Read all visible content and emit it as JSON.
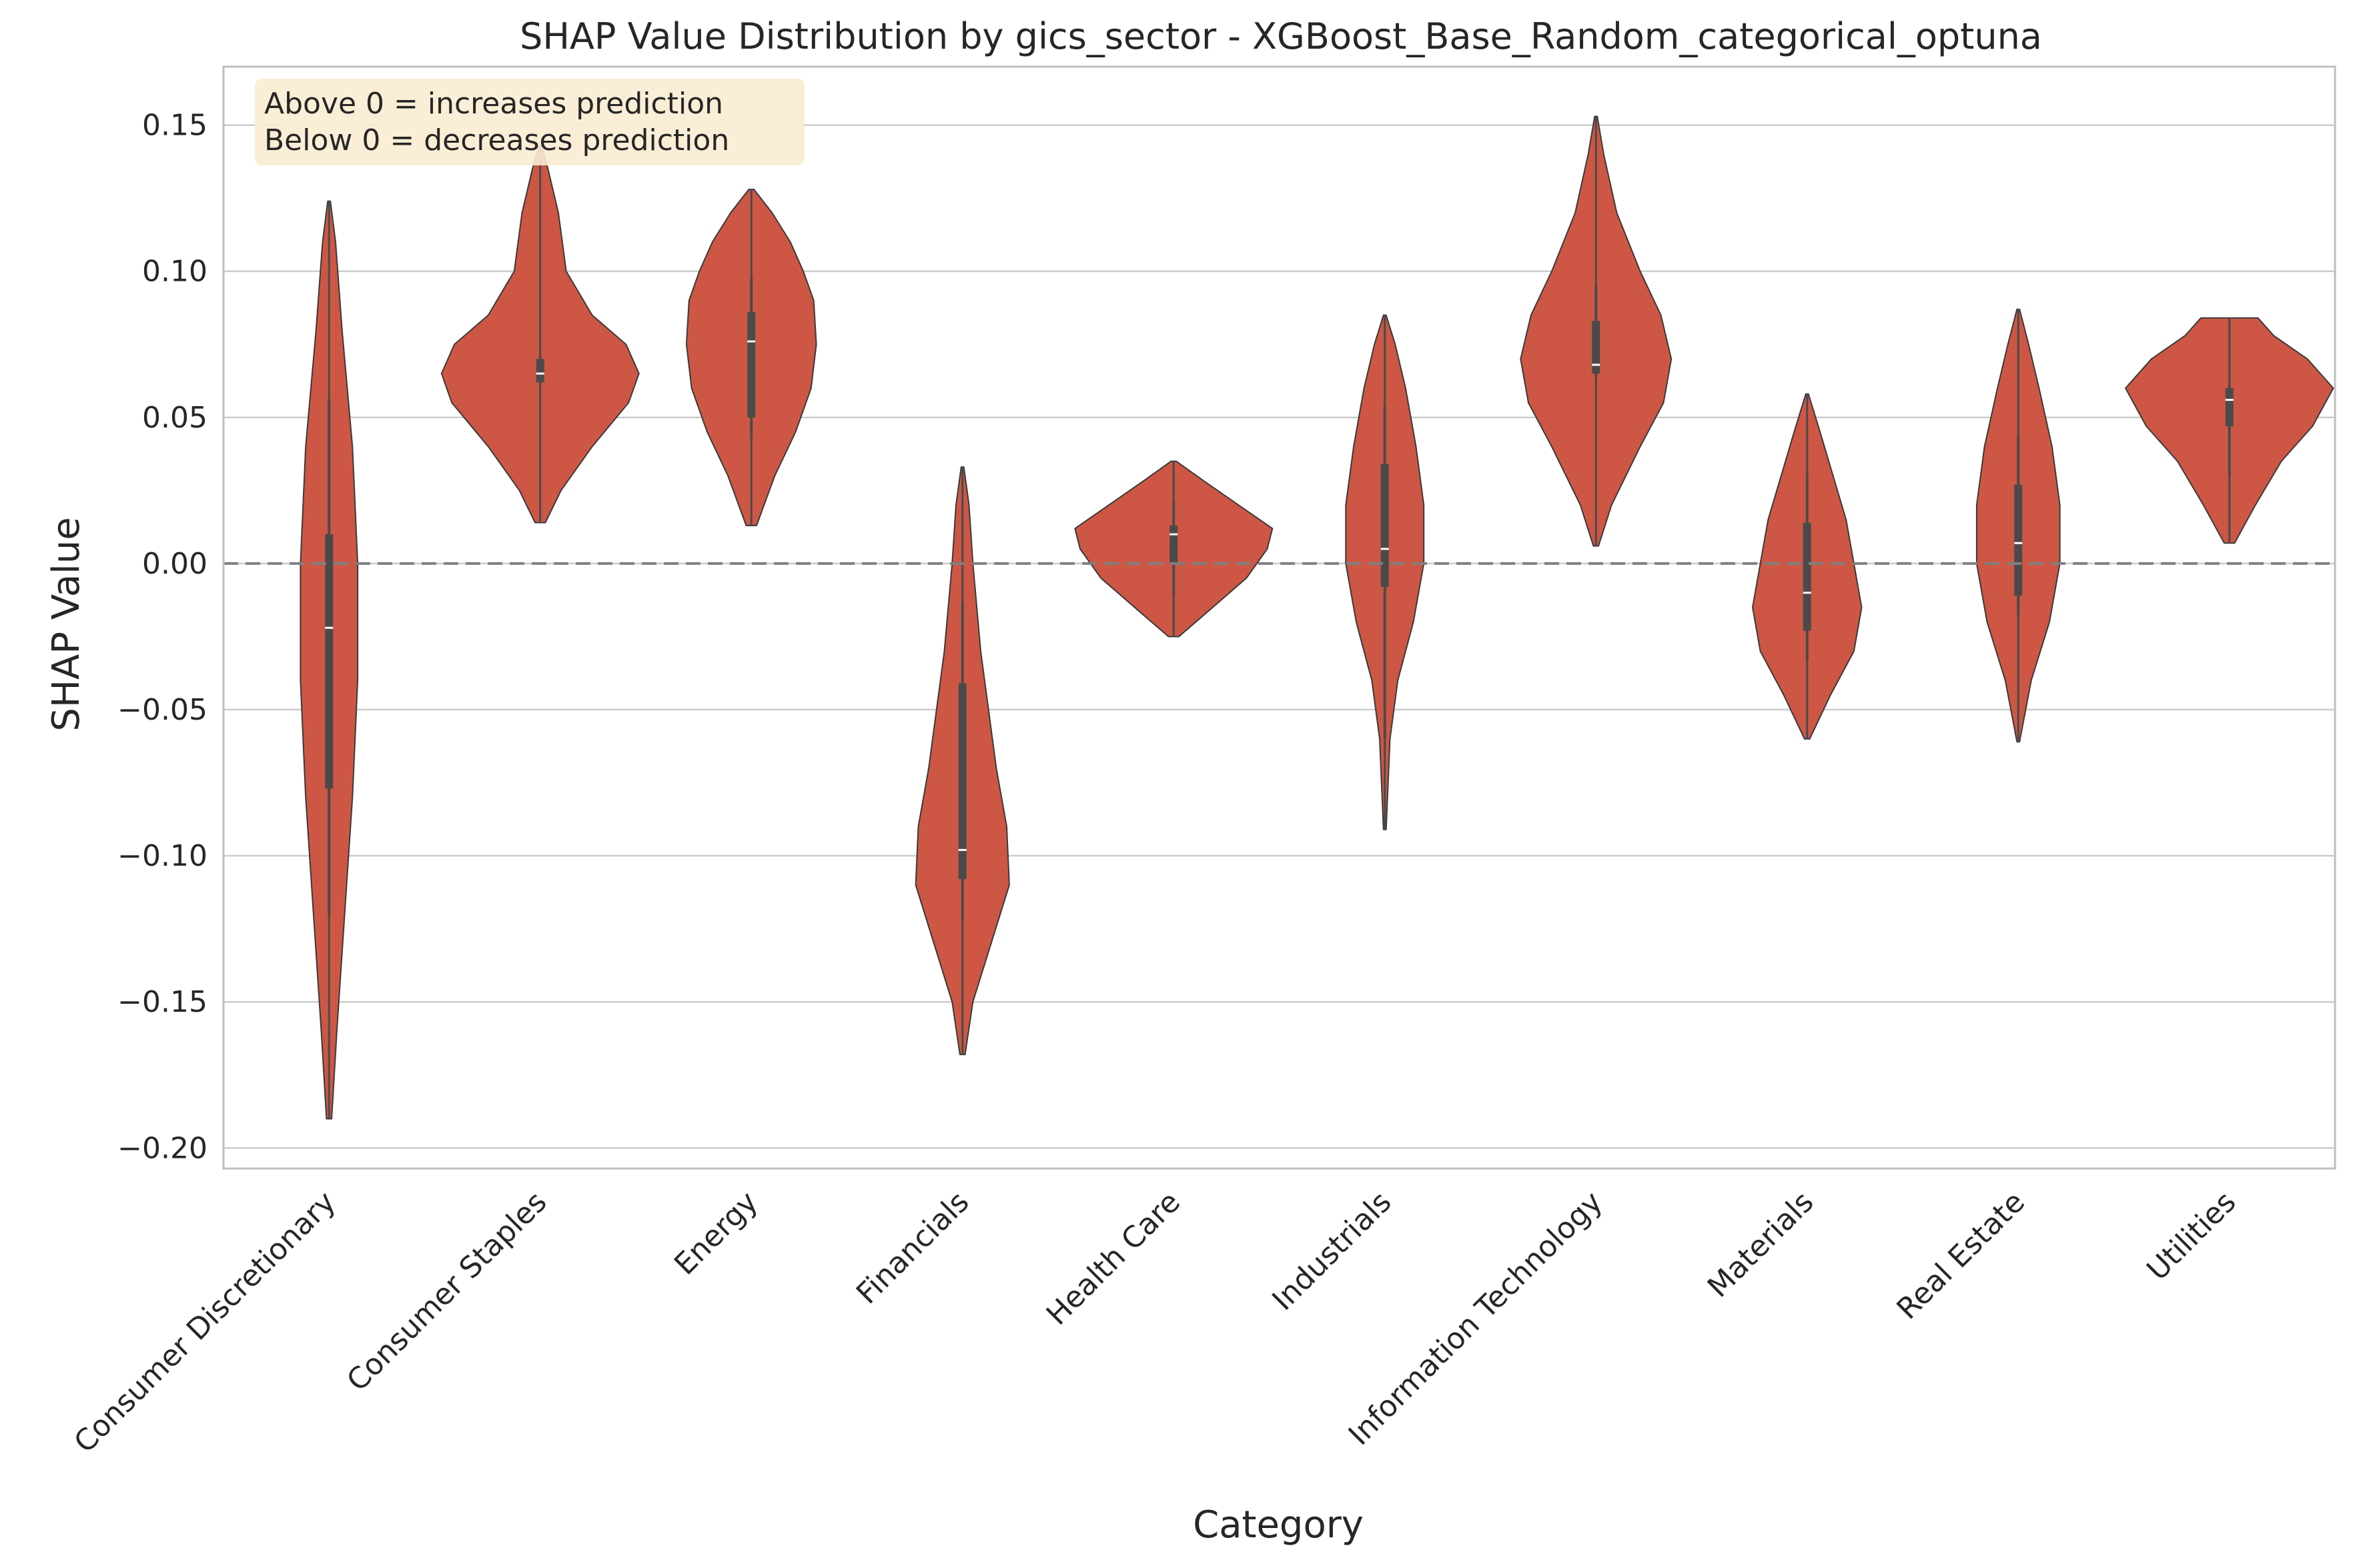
{
  "chart_data": {
    "type": "violin",
    "title": "SHAP Value Distribution by gics_sector - XGBoost_Base_Random_categorical_optuna",
    "xlabel": "Category",
    "ylabel": "SHAP Value",
    "ylim": [
      -0.207,
      0.17
    ],
    "yticks": [
      0.15,
      0.1,
      0.05,
      0.0,
      -0.05,
      -0.1,
      -0.15,
      -0.2
    ],
    "ytick_labels": [
      "0.15",
      "0.10",
      "0.05",
      "0.00",
      "−0.05",
      "−0.10",
      "−0.15",
      "−0.20"
    ],
    "grid": true,
    "reference_line": 0,
    "annotation": [
      "Above 0 = increases prediction",
      "Below 0 = decreases prediction"
    ],
    "colors": {
      "violin": "#cd5744",
      "violin_edge": "#3a3a3a",
      "box": "#4a4a4a",
      "grid": "#cccccc",
      "spine": "#bfbfbf",
      "refline": "#808080",
      "annot_bg": "#fbecd2"
    },
    "categories": [
      "Consumer Discretionary",
      "Consumer Staples",
      "Energy",
      "Financials",
      "Health Care",
      "Industrials",
      "Information Technology",
      "Materials",
      "Real Estate",
      "Utilities"
    ],
    "series": [
      {
        "min": -0.19,
        "max": 0.124,
        "whisker": [
          -0.12,
          0.056
        ],
        "q1": -0.077,
        "median": -0.022,
        "q3": 0.01,
        "profile": [
          [
            -0.19,
            0.002
          ],
          [
            -0.16,
            0.006
          ],
          [
            -0.12,
            0.012
          ],
          [
            -0.08,
            0.018
          ],
          [
            -0.04,
            0.022
          ],
          [
            0.0,
            0.022
          ],
          [
            0.04,
            0.018
          ],
          [
            0.08,
            0.01
          ],
          [
            0.11,
            0.005
          ],
          [
            0.124,
            0.001
          ]
        ]
      },
      {
        "min": 0.014,
        "max": 0.143,
        "whisker": [
          0.062,
          0.071
        ],
        "q1": 0.062,
        "median": 0.065,
        "q3": 0.07,
        "profile": [
          [
            0.014,
            0.004
          ],
          [
            0.025,
            0.016
          ],
          [
            0.04,
            0.04
          ],
          [
            0.055,
            0.068
          ],
          [
            0.065,
            0.076
          ],
          [
            0.075,
            0.066
          ],
          [
            0.085,
            0.04
          ],
          [
            0.1,
            0.02
          ],
          [
            0.12,
            0.014
          ],
          [
            0.135,
            0.006
          ],
          [
            0.143,
            0.001
          ]
        ]
      },
      {
        "min": 0.013,
        "max": 0.128,
        "whisker": [
          0.043,
          0.098
        ],
        "q1": 0.05,
        "median": 0.076,
        "q3": 0.086,
        "profile": [
          [
            0.013,
            0.004
          ],
          [
            0.03,
            0.018
          ],
          [
            0.045,
            0.034
          ],
          [
            0.06,
            0.046
          ],
          [
            0.075,
            0.05
          ],
          [
            0.09,
            0.048
          ],
          [
            0.1,
            0.04
          ],
          [
            0.11,
            0.03
          ],
          [
            0.12,
            0.016
          ],
          [
            0.128,
            0.002
          ]
        ]
      },
      {
        "min": -0.168,
        "max": 0.033,
        "whisker": [
          -0.122,
          -0.013
        ],
        "q1": -0.108,
        "median": -0.098,
        "q3": -0.041,
        "profile": [
          [
            -0.168,
            0.002
          ],
          [
            -0.15,
            0.008
          ],
          [
            -0.13,
            0.022
          ],
          [
            -0.11,
            0.036
          ],
          [
            -0.09,
            0.034
          ],
          [
            -0.07,
            0.026
          ],
          [
            -0.05,
            0.02
          ],
          [
            -0.03,
            0.014
          ],
          [
            0.0,
            0.008
          ],
          [
            0.02,
            0.005
          ],
          [
            0.033,
            0.001
          ]
        ]
      },
      {
        "min": -0.025,
        "max": 0.035,
        "whisker": [
          -0.011,
          0.021
        ],
        "q1": 0.0,
        "median": 0.01,
        "q3": 0.013,
        "profile": [
          [
            -0.025,
            0.004
          ],
          [
            -0.015,
            0.03
          ],
          [
            -0.005,
            0.056
          ],
          [
            0.005,
            0.072
          ],
          [
            0.012,
            0.076
          ],
          [
            0.02,
            0.05
          ],
          [
            0.028,
            0.024
          ],
          [
            0.035,
            0.002
          ]
        ]
      },
      {
        "min": -0.091,
        "max": 0.085,
        "whisker": [
          -0.06,
          0.054
        ],
        "q1": -0.008,
        "median": 0.005,
        "q3": 0.034,
        "profile": [
          [
            -0.091,
            0.001
          ],
          [
            -0.06,
            0.004
          ],
          [
            -0.04,
            0.01
          ],
          [
            -0.02,
            0.022
          ],
          [
            0.0,
            0.03
          ],
          [
            0.02,
            0.03
          ],
          [
            0.04,
            0.024
          ],
          [
            0.06,
            0.016
          ],
          [
            0.075,
            0.008
          ],
          [
            0.085,
            0.001
          ]
        ]
      },
      {
        "min": 0.006,
        "max": 0.153,
        "whisker": [
          0.064,
          0.095
        ],
        "q1": 0.065,
        "median": 0.068,
        "q3": 0.083,
        "profile": [
          [
            0.006,
            0.002
          ],
          [
            0.02,
            0.012
          ],
          [
            0.04,
            0.034
          ],
          [
            0.055,
            0.052
          ],
          [
            0.07,
            0.058
          ],
          [
            0.085,
            0.05
          ],
          [
            0.1,
            0.034
          ],
          [
            0.12,
            0.016
          ],
          [
            0.14,
            0.006
          ],
          [
            0.153,
            0.001
          ]
        ]
      },
      {
        "min": -0.06,
        "max": 0.058,
        "whisker": [
          -0.033,
          0.031
        ],
        "q1": -0.023,
        "median": -0.01,
        "q3": 0.014,
        "profile": [
          [
            -0.06,
            0.002
          ],
          [
            -0.045,
            0.018
          ],
          [
            -0.03,
            0.036
          ],
          [
            -0.015,
            0.042
          ],
          [
            0.0,
            0.036
          ],
          [
            0.015,
            0.03
          ],
          [
            0.03,
            0.02
          ],
          [
            0.045,
            0.01
          ],
          [
            0.058,
            0.001
          ]
        ]
      },
      {
        "min": -0.061,
        "max": 0.087,
        "whisker": [
          -0.018,
          0.044
        ],
        "q1": -0.011,
        "median": 0.007,
        "q3": 0.027,
        "profile": [
          [
            -0.061,
            0.001
          ],
          [
            -0.04,
            0.01
          ],
          [
            -0.02,
            0.024
          ],
          [
            0.0,
            0.032
          ],
          [
            0.02,
            0.032
          ],
          [
            0.04,
            0.026
          ],
          [
            0.06,
            0.016
          ],
          [
            0.075,
            0.008
          ],
          [
            0.087,
            0.001
          ]
        ]
      },
      {
        "min": 0.007,
        "max": 0.084,
        "whisker": [
          0.03,
          0.061
        ],
        "q1": 0.047,
        "median": 0.056,
        "q3": 0.06,
        "profile": [
          [
            0.007,
            0.004
          ],
          [
            0.02,
            0.02
          ],
          [
            0.035,
            0.04
          ],
          [
            0.047,
            0.064
          ],
          [
            0.06,
            0.08
          ],
          [
            0.07,
            0.06
          ],
          [
            0.078,
            0.034
          ],
          [
            0.084,
            0.022
          ]
        ]
      }
    ]
  }
}
